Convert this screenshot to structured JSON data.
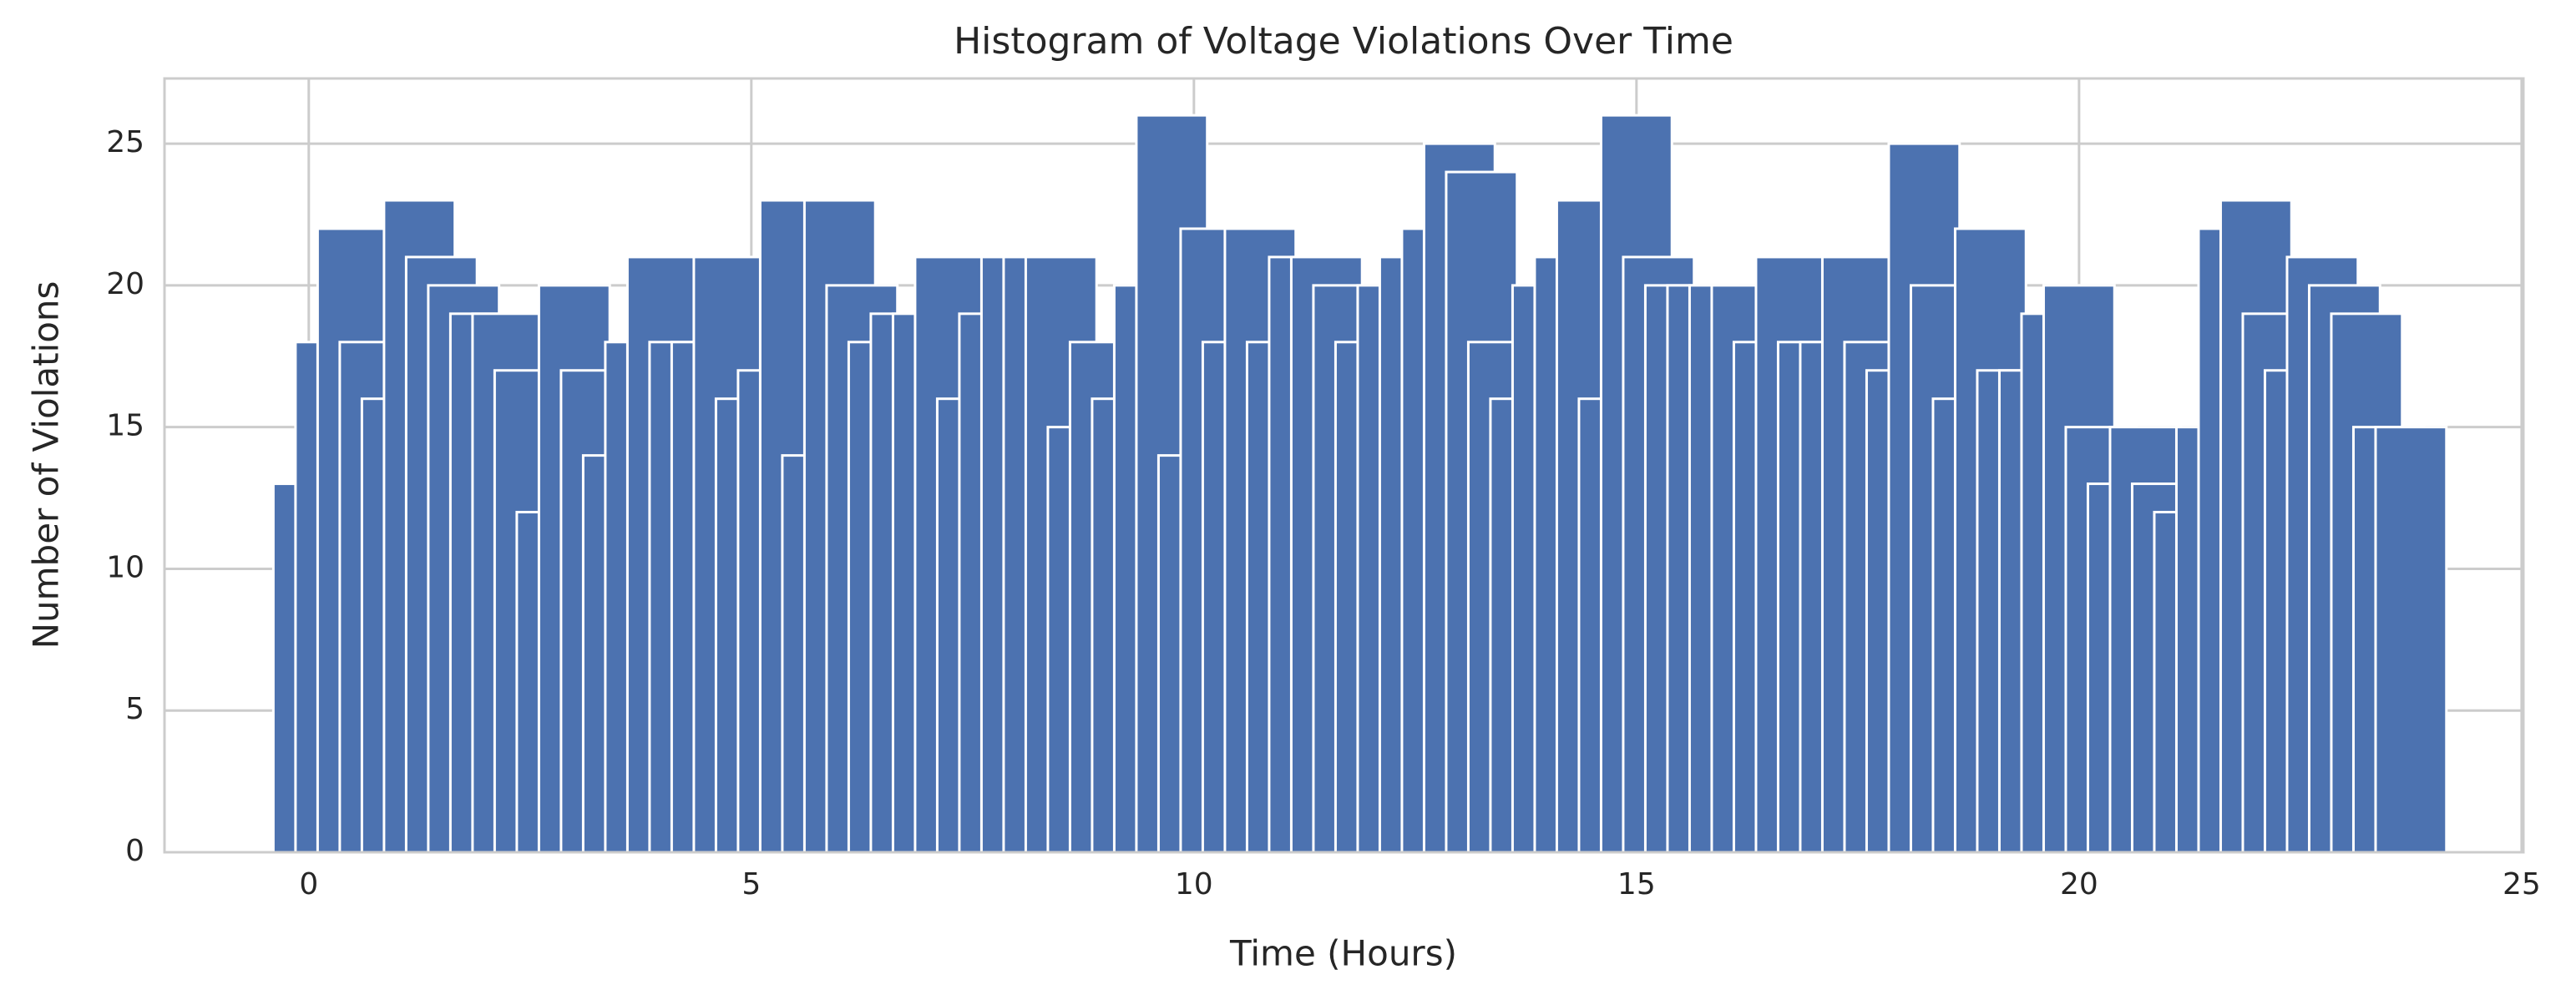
{
  "chart_data": {
    "type": "bar",
    "title": "Histogram of Voltage Violations Over Time",
    "x_label": "Time (Hours)",
    "y_label": "Number of Violations",
    "x": [
      0,
      0.25,
      0.5,
      0.75,
      1,
      1.25,
      1.5,
      1.75,
      2,
      2.25,
      2.5,
      2.75,
      3,
      3.25,
      3.5,
      3.75,
      4,
      4.25,
      4.5,
      4.75,
      5,
      5.25,
      5.5,
      5.75,
      6,
      6.25,
      6.5,
      6.75,
      7,
      7.25,
      7.5,
      7.75,
      8,
      8.25,
      8.5,
      8.75,
      9,
      9.25,
      9.5,
      9.75,
      10,
      10.25,
      10.5,
      10.75,
      11,
      11.25,
      11.5,
      11.75,
      12,
      12.25,
      12.5,
      12.75,
      13,
      13.25,
      13.5,
      13.75,
      14,
      14.25,
      14.5,
      14.75,
      15,
      15.25,
      15.5,
      15.75,
      16,
      16.25,
      16.5,
      16.75,
      17,
      17.25,
      17.5,
      17.75,
      18,
      18.25,
      18.5,
      18.75,
      19,
      19.25,
      19.5,
      19.75,
      20,
      20.25,
      20.5,
      20.75,
      21,
      21.25,
      21.5,
      21.75,
      22,
      22.25,
      22.5,
      22.75,
      23,
      23.25,
      23.5,
      23.75
    ],
    "values": [
      13,
      18,
      22,
      18,
      16,
      23,
      21,
      20,
      19,
      19,
      17,
      12,
      20,
      17,
      14,
      18,
      21,
      18,
      18,
      21,
      16,
      17,
      23,
      14,
      23,
      20,
      18,
      19,
      19,
      21,
      16,
      19,
      21,
      21,
      21,
      15,
      18,
      16,
      20,
      26,
      14,
      22,
      18,
      22,
      18,
      21,
      21,
      20,
      18,
      20,
      21,
      22,
      25,
      24,
      18,
      16,
      20,
      21,
      23,
      16,
      26,
      21,
      20,
      20,
      20,
      20,
      18,
      21,
      18,
      18,
      21,
      18,
      17,
      25,
      20,
      16,
      22,
      17,
      17,
      19,
      20,
      15,
      13,
      15,
      13,
      12,
      15,
      22,
      23,
      19,
      17,
      21,
      20,
      19,
      15,
      15
    ],
    "bar_width": 0.8,
    "color": "#4c72b0",
    "xlim": [
      -1.63,
      25.02
    ],
    "xticks": [
      0,
      5,
      10,
      15,
      20,
      25
    ],
    "ylim": [
      0,
      27.3
    ],
    "yticks": [
      0,
      5,
      10,
      15,
      20,
      25
    ],
    "grid": true
  }
}
